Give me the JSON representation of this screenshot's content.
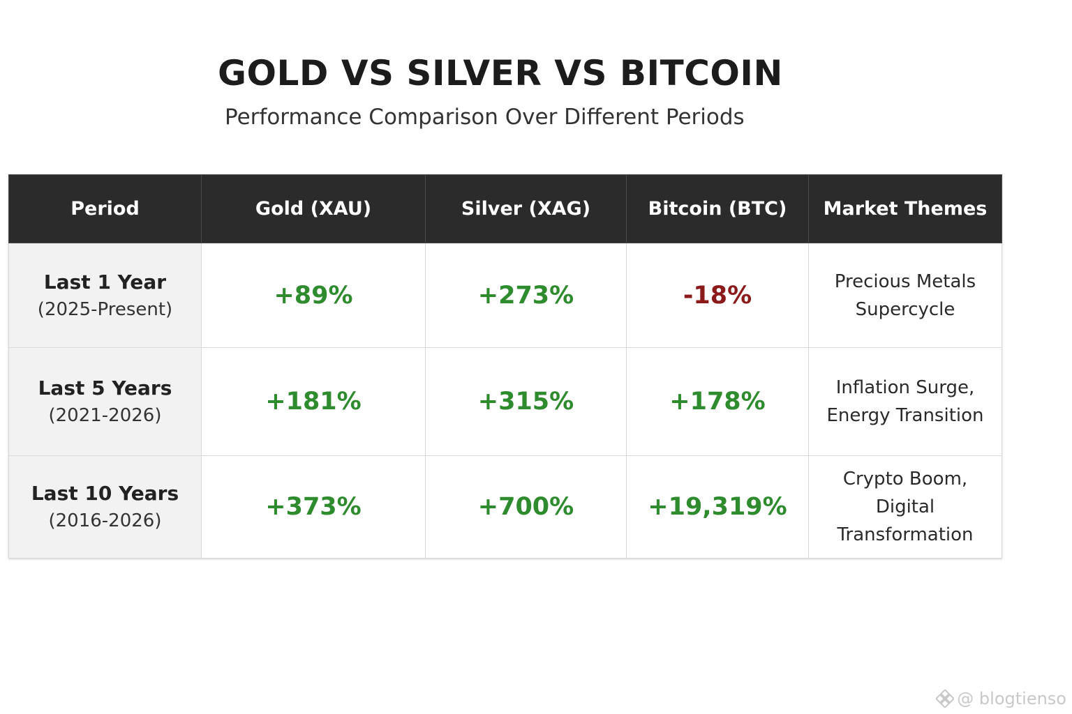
{
  "title": "GOLD VS SILVER VS BITCOIN",
  "subtitle": "Performance Comparison Over Different Periods",
  "colors": {
    "header_bg": "#2b2b2b",
    "positive": "#2e8b2e",
    "negative": "#8b1a1a",
    "period_bg": "#f2f2f2"
  },
  "chart_data": {
    "type": "table",
    "columns": [
      "Period",
      "Gold (XAU)",
      "Silver (XAG)",
      "Bitcoin (BTC)",
      "Market Themes"
    ],
    "rows": [
      {
        "period": "Last 1 Year",
        "range": "(2025-Present)",
        "gold": "+89%",
        "silver": "+273%",
        "bitcoin": "-18%",
        "themes": [
          "Precious Metals",
          "Supercycle"
        ]
      },
      {
        "period": "Last 5 Years",
        "range": "(2021-2026)",
        "gold": "+181%",
        "silver": "+315%",
        "bitcoin": "+178%",
        "themes": [
          "Inflation Surge,",
          "Energy Transition"
        ]
      },
      {
        "period": "Last 10 Years",
        "range": "(2016-2026)",
        "gold": "+373%",
        "silver": "+700%",
        "bitcoin": "+19,319%",
        "themes": [
          "Crypto Boom,",
          "Digital Transformation"
        ]
      }
    ]
  },
  "watermark": {
    "icon": "binance-square-icon",
    "text": "@ blogtienso"
  }
}
